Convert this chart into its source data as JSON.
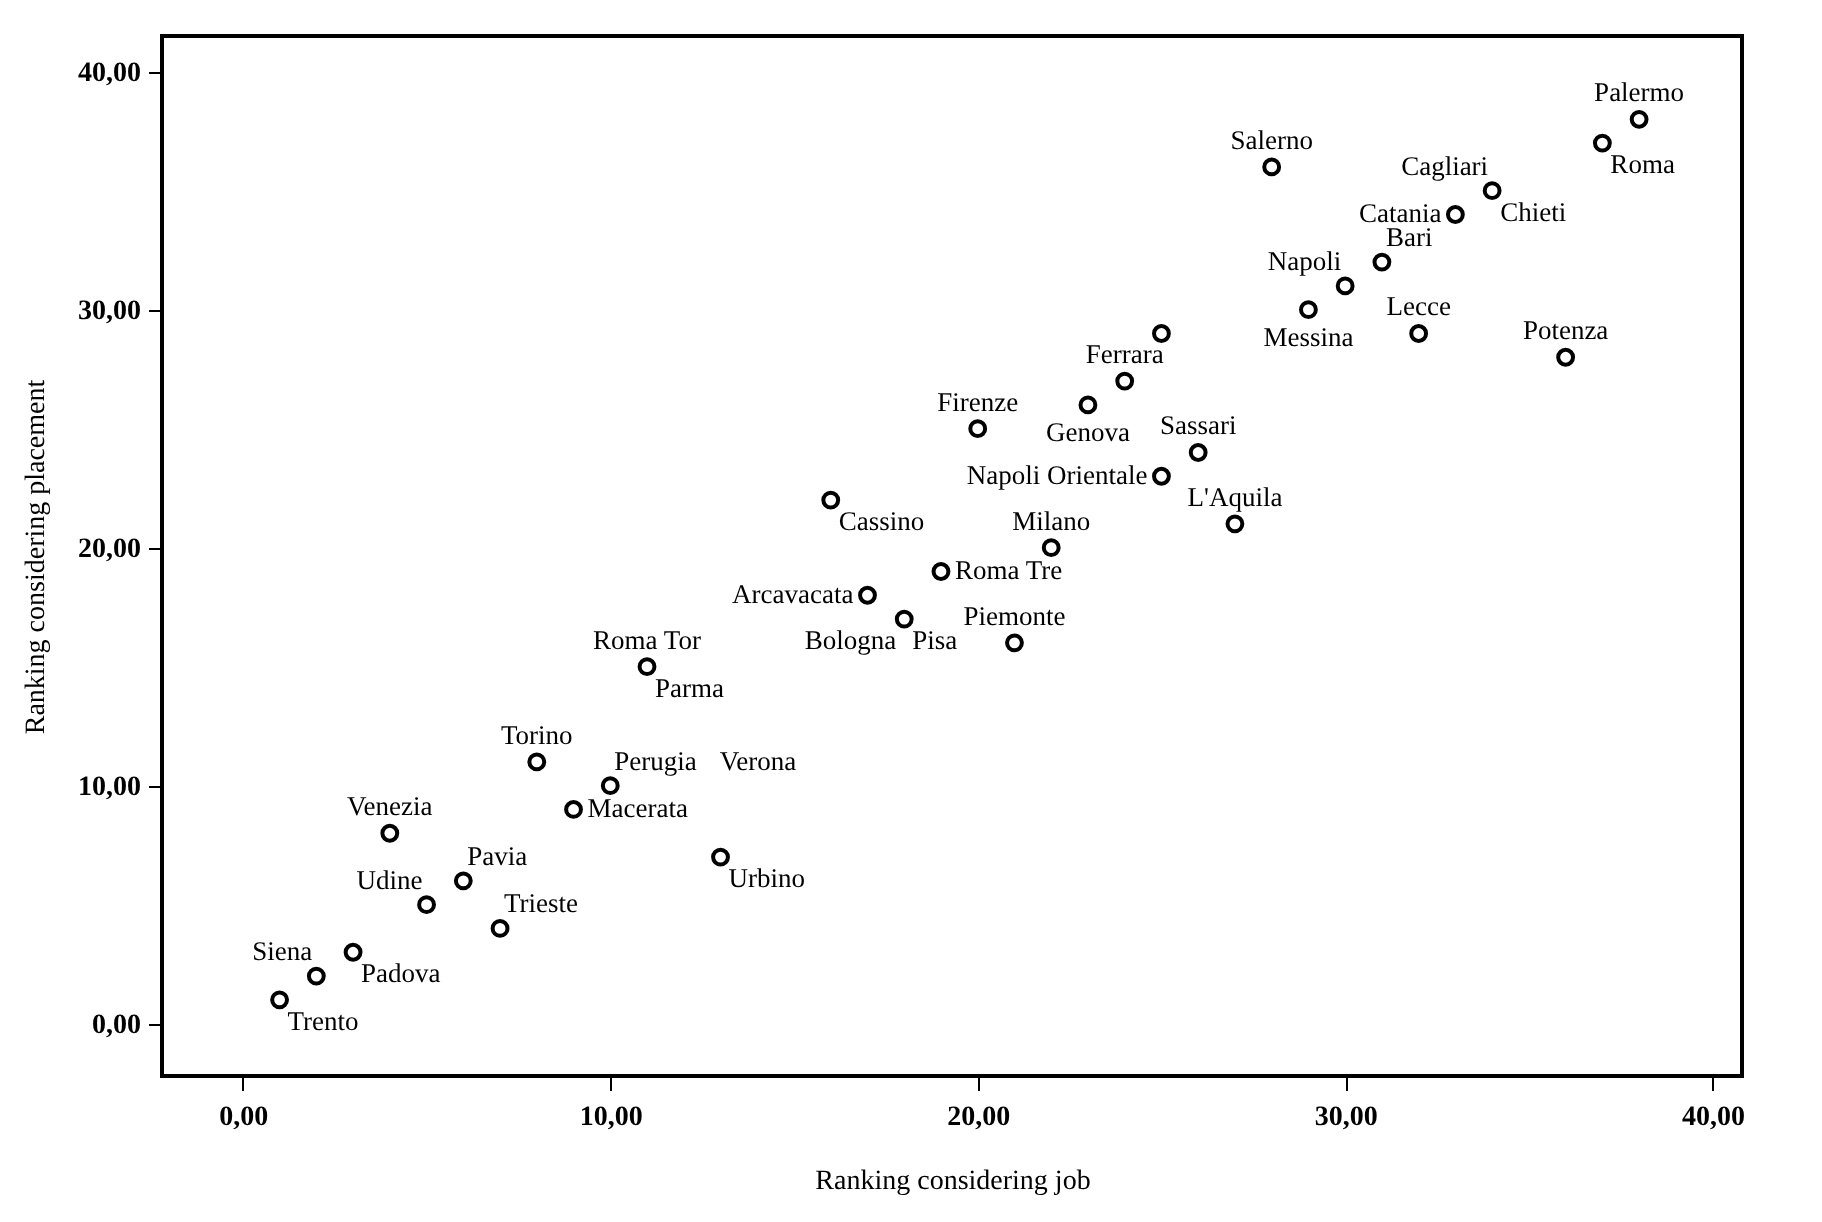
{
  "chart_data": {
    "type": "scatter",
    "xlabel": "Ranking considering job",
    "ylabel": "Ranking considering placement",
    "xlim": [
      -2.2,
      40.8
    ],
    "ylim": [
      -2.2,
      41.5
    ],
    "xticks": [
      {
        "value": 0,
        "label": "0,00"
      },
      {
        "value": 10,
        "label": "10,00"
      },
      {
        "value": 20,
        "label": "20,00"
      },
      {
        "value": 30,
        "label": "30,00"
      },
      {
        "value": 40,
        "label": "40,00"
      }
    ],
    "yticks": [
      {
        "value": 0,
        "label": "0,00"
      },
      {
        "value": 10,
        "label": "10,00"
      },
      {
        "value": 20,
        "label": "20,00"
      },
      {
        "value": 30,
        "label": "30,00"
      },
      {
        "value": 40,
        "label": "40,00"
      }
    ],
    "grid": false,
    "marker": "circle",
    "series": [
      {
        "color": "#000000",
        "x": [
          1,
          2,
          3,
          5,
          6,
          7,
          4,
          8,
          10,
          9,
          13,
          11,
          18,
          17,
          19,
          21,
          22,
          16,
          25,
          26,
          27,
          20,
          23,
          24,
          25,
          38,
          37,
          34,
          33,
          28,
          31,
          30,
          29,
          32,
          36
        ],
        "values": [
          1,
          2,
          3,
          5,
          6,
          4,
          8,
          11,
          10,
          9,
          7,
          15,
          17,
          18,
          19,
          16,
          20,
          22,
          23,
          24,
          21,
          25,
          26,
          27,
          29,
          38,
          37,
          35,
          34,
          36,
          32,
          31,
          30,
          29,
          28
        ]
      }
    ],
    "annotations": [
      {
        "text": "Trento",
        "x": 1,
        "y": 1
      },
      {
        "text": "Siena",
        "x": 2,
        "y": 2
      },
      {
        "text": "Padova",
        "x": 3,
        "y": 3
      },
      {
        "text": "Udine",
        "x": 5,
        "y": 5
      },
      {
        "text": "Pavia",
        "x": 6,
        "y": 6
      },
      {
        "text": "Trieste",
        "x": 7,
        "y": 4
      },
      {
        "text": "Venezia",
        "x": 4,
        "y": 8
      },
      {
        "text": "Torino",
        "x": 8,
        "y": 11
      },
      {
        "text": "Perugia",
        "x": 10,
        "y": 10
      },
      "Verona",
      {
        "text": "Macerata",
        "x": 9,
        "y": 9
      },
      {
        "text": "Urbino",
        "x": 13,
        "y": 7
      },
      {
        "text": "Roma Tor",
        "x": 11,
        "y": 15
      },
      {
        "text": "Parma",
        "x": 11,
        "y": 15
      },
      {
        "text": "Bologna",
        "x": 18,
        "y": 17
      },
      {
        "text": "Pisa",
        "x": 18,
        "y": 17
      },
      {
        "text": "Arcavacata",
        "x": 17,
        "y": 18
      },
      {
        "text": "Roma Tre",
        "x": 19,
        "y": 19
      },
      {
        "text": "Piemonte",
        "x": 21,
        "y": 16
      },
      {
        "text": "Milano",
        "x": 22,
        "y": 20
      },
      {
        "text": "Cassino",
        "x": 16,
        "y": 22
      },
      {
        "text": "Napoli Orientale",
        "x": 25,
        "y": 23
      },
      {
        "text": "Sassari",
        "x": 26,
        "y": 24
      },
      {
        "text": "L'Aquila",
        "x": 27,
        "y": 21
      },
      {
        "text": "Firenze",
        "x": 20,
        "y": 25
      },
      {
        "text": "Genova",
        "x": 23,
        "y": 26
      },
      {
        "text": "Ferrara",
        "x": 24,
        "y": 27
      },
      {
        "text": "Palermo",
        "x": 38,
        "y": 38
      },
      {
        "text": "Roma",
        "x": 37,
        "y": 37
      },
      {
        "text": "Cagliari",
        "x": 34,
        "y": 35
      },
      {
        "text": "Chieti",
        "x": 34,
        "y": 35
      },
      {
        "text": "Catania",
        "x": 33,
        "y": 34
      },
      {
        "text": "Salerno",
        "x": 28,
        "y": 36
      },
      {
        "text": "Bari",
        "x": 31,
        "y": 32
      },
      {
        "text": "Napoli",
        "x": 30,
        "y": 31
      },
      {
        "text": "Messina",
        "x": 29,
        "y": 30
      },
      {
        "text": "Lecce",
        "x": 32,
        "y": 29
      },
      {
        "text": "Potenza",
        "x": 36,
        "y": 28
      }
    ]
  }
}
